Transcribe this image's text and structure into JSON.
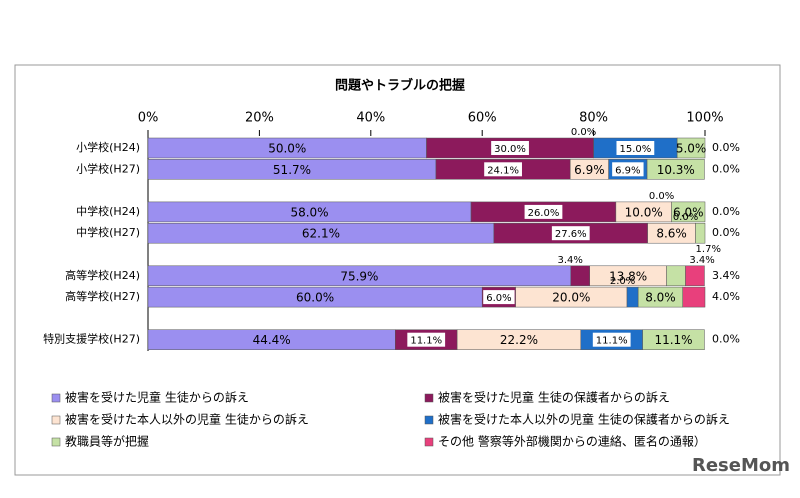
{
  "chart_data": {
    "type": "stacked-bar-horizontal",
    "title": "問題やトラブルの把握",
    "watermark": "ReseMom",
    "categories": [
      "小学校(H24)",
      "小学校(H27)",
      null,
      "中学校(H24)",
      "中学校(H27)",
      null,
      "高等学校(H24)",
      "高等学校(H27)",
      null,
      "特別支援学校(H27)"
    ],
    "xlim": [
      0,
      100
    ],
    "xticks": [
      {
        "value": 0,
        "label": "0%"
      },
      {
        "value": 20,
        "label": "20%"
      },
      {
        "value": 40,
        "label": "40%"
      },
      {
        "value": 60,
        "label": "60%"
      },
      {
        "value": 80,
        "label": "80%"
      },
      {
        "value": 100,
        "label": "100%"
      }
    ],
    "series": [
      {
        "name": "被害を受けた児童 生徒からの訴え",
        "color": "#9b8ff0",
        "values": [
          50.0,
          51.7,
          null,
          58.0,
          62.1,
          null,
          75.9,
          60.0,
          null,
          44.4
        ],
        "value_labels": [
          "50.0%",
          "51.7%",
          null,
          "58.0%",
          "62.1%",
          null,
          "75.9%",
          "60.0%",
          null,
          "44.4%"
        ]
      },
      {
        "name": "被害を受けた児童 生徒の保護者からの訴え",
        "color": "#8c1a5c",
        "values": [
          30.0,
          24.1,
          null,
          26.0,
          27.6,
          null,
          3.4,
          6.0,
          null,
          11.1
        ],
        "value_labels": [
          "30.0%",
          "24.1%",
          null,
          "26.0%",
          "27.6%",
          null,
          "3.4%",
          "6.0%",
          null,
          "11.1%"
        ]
      },
      {
        "name": "被害を受けた本人以外の児童 生徒からの訴え",
        "color": "#fde4d2",
        "values": [
          0.0,
          6.9,
          null,
          10.0,
          8.6,
          null,
          13.8,
          20.0,
          null,
          22.2
        ],
        "value_labels": [
          "0.0%",
          "6.9%",
          null,
          "10.0%",
          "8.6%",
          null,
          "13.8%",
          "20.0%",
          null,
          "22.2%"
        ]
      },
      {
        "name": "被害を受けた本人以外の児童 生徒の保護者からの訴え",
        "color": "#1f6fc8",
        "values": [
          15.0,
          6.9,
          null,
          0.0,
          0.0,
          null,
          0.0,
          2.0,
          null,
          11.1
        ],
        "value_labels": [
          "15.0%",
          "6.9%",
          null,
          "0.0%",
          "0.0%",
          null,
          "0.0%",
          "2.0%",
          null,
          "11.1%"
        ]
      },
      {
        "name": "教職員等が把握",
        "color": "#c5e1a5",
        "values": [
          5.0,
          10.3,
          null,
          6.0,
          1.7,
          null,
          3.4,
          8.0,
          null,
          11.1
        ],
        "value_labels": [
          "5.0%",
          "10.3%",
          null,
          "6.0%",
          "1.7%",
          null,
          "3.4%",
          "8.0%",
          null,
          "11.1%"
        ]
      },
      {
        "name": "その他 警察等外部機関からの連絡、匿名の通報）",
        "color": "#e8407c",
        "values": [
          0.0,
          0.0,
          null,
          0.0,
          0.0,
          null,
          3.4,
          4.0,
          null,
          0.0
        ],
        "value_labels": [
          "0.0%",
          "0.0%",
          null,
          "0.0%",
          "0.0%",
          null,
          "3.4%",
          "4.0%",
          null,
          "0.0%"
        ]
      }
    ]
  }
}
